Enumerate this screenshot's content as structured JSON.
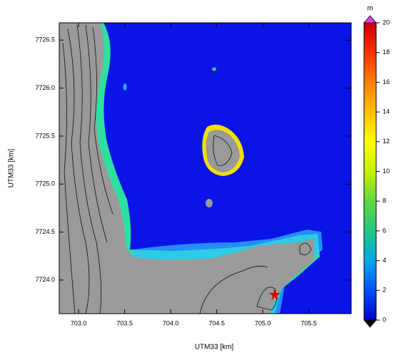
{
  "map": {
    "xlabel": "UTM33 [km]",
    "ylabel": "UTM33 [km]",
    "xlim": [
      702.79,
      705.96
    ],
    "ylim": [
      7723.65,
      7726.68
    ],
    "xticks": [
      {
        "value": 703,
        "label": "703.0"
      },
      703.5,
      {
        "value": 704,
        "label": "704.0"
      },
      704.5,
      {
        "value": 705,
        "label": "705.0"
      },
      705.5
    ],
    "yticks": [
      {
        "value": 7724,
        "label": "7724.0"
      },
      7724.5,
      {
        "value": 7725,
        "label": "7725.0"
      },
      7725.5,
      {
        "value": 7726,
        "label": "7726.0"
      },
      7726.5
    ],
    "water_color": "#0a14e6",
    "land_color": "#9a9a9a"
  },
  "colorbar": {
    "label": "m",
    "lim": [
      0,
      20
    ],
    "ticks": [
      0,
      2,
      4,
      6,
      8,
      10,
      12,
      14,
      16,
      18,
      20
    ],
    "colors": [
      "#0000c8",
      "#0050ff",
      "#00a8e8",
      "#20c880",
      "#60d840",
      "#c8f000",
      "#ffff00",
      "#ffc000",
      "#ff8000",
      "#ff3000",
      "#c80000"
    ],
    "over_color": "#e040e0",
    "under_color": "#000000"
  }
}
